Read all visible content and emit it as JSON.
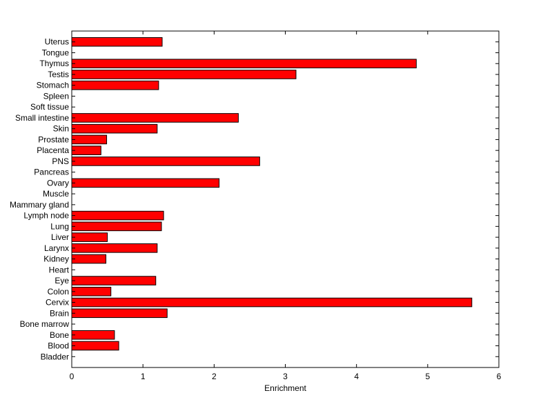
{
  "chart_data": {
    "type": "bar",
    "orientation": "horizontal",
    "title": "",
    "xlabel": "Enrichment",
    "ylabel": "",
    "xlim": [
      0,
      6
    ],
    "x_ticks": [
      "0",
      "1",
      "2",
      "3",
      "4",
      "5",
      "6"
    ],
    "grid": false,
    "legend": "none",
    "bar_color": "#ff0000",
    "categories": [
      "Uterus",
      "Tongue",
      "Thymus",
      "Testis",
      "Stomach",
      "Spleen",
      "Soft tissue",
      "Small intestine",
      "Skin",
      "Prostate",
      "Placenta",
      "PNS",
      "Pancreas",
      "Ovary",
      "Muscle",
      "Mammary gland",
      "Lymph node",
      "Lung",
      "Liver",
      "Larynx",
      "Kidney",
      "Heart",
      "Eye",
      "Colon",
      "Cervix",
      "Brain",
      "Bone marrow",
      "Bone",
      "Blood",
      "Bladder"
    ],
    "values": [
      1.27,
      0,
      4.84,
      3.15,
      1.22,
      0,
      0,
      2.34,
      1.2,
      0.49,
      0.41,
      2.64,
      0,
      2.07,
      0,
      0,
      1.29,
      1.26,
      0.5,
      1.2,
      0.48,
      0,
      1.18,
      0.55,
      5.62,
      1.34,
      0,
      0.6,
      0.66,
      0
    ]
  }
}
